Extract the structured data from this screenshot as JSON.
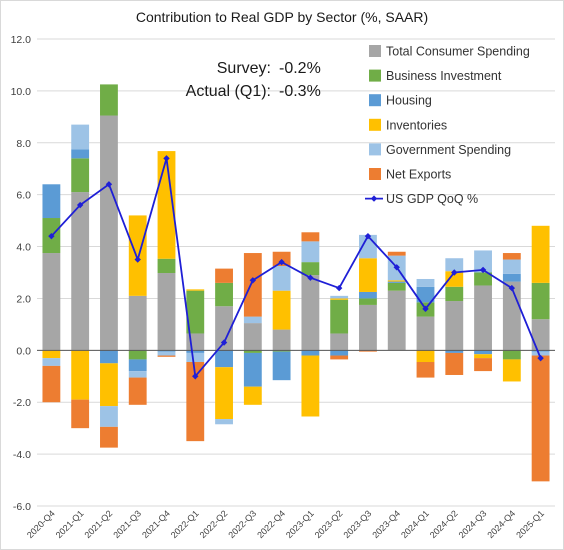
{
  "chart_data": {
    "type": "bar",
    "stacked": true,
    "title": "Contribution to Real GDP by Sector (%, SAAR)",
    "ylim": [
      -6,
      12
    ],
    "yticks": [
      "-6.0",
      "-4.0",
      "-2.0",
      "0.0",
      "2.0",
      "4.0",
      "6.0",
      "8.0",
      "10.0",
      "12.0"
    ],
    "grid": true,
    "legend_position": "top-right",
    "categories": [
      "2020-Q4",
      "2021-Q1",
      "2021-Q2",
      "2021-Q3",
      "2021-Q4",
      "2022-Q1",
      "2022-Q2",
      "2022-Q3",
      "2022-Q4",
      "2023-Q1",
      "2023-Q2",
      "2023-Q3",
      "2023-Q4",
      "2024-Q1",
      "2024-Q2",
      "2024-Q3",
      "2024-Q4",
      "2025-Q1"
    ],
    "series": [
      {
        "name": "Total Consumer Spending",
        "color": "#a6a6a6",
        "values": [
          3.75,
          6.1,
          9.05,
          2.1,
          2.98,
          0.65,
          1.7,
          1.05,
          0.8,
          2.9,
          0.65,
          1.75,
          2.3,
          1.3,
          1.9,
          2.5,
          2.65,
          1.2
        ]
      },
      {
        "name": "Business Investment",
        "color": "#70ad47",
        "values": [
          1.35,
          1.3,
          1.2,
          -0.35,
          0.55,
          1.65,
          0.9,
          -0.1,
          -0.05,
          0.5,
          1.3,
          0.25,
          0.3,
          0.55,
          0.55,
          0.5,
          -0.35,
          1.4
        ]
      },
      {
        "name": "Housing",
        "color": "#5b9bd5",
        "values": [
          1.3,
          0.35,
          -0.5,
          -0.45,
          -0.05,
          -0.1,
          -0.65,
          -1.3,
          -1.1,
          -0.2,
          -0.2,
          0.25,
          0.05,
          0.6,
          -0.1,
          -0.15,
          0.3,
          -0.05
        ]
      },
      {
        "name": "Inventories",
        "color": "#ffc000",
        "values": [
          -0.3,
          -1.9,
          -1.65,
          3.1,
          4.15,
          0.05,
          -2.0,
          -0.7,
          1.5,
          -2.35,
          0.05,
          1.3,
          0.05,
          -0.45,
          0.6,
          -0.15,
          -0.85,
          2.2
        ]
      },
      {
        "name": "Government Spending",
        "color": "#9dc3e6",
        "values": [
          -0.3,
          0.95,
          -0.8,
          -0.25,
          -0.15,
          -0.35,
          -0.2,
          0.25,
          0.95,
          0.8,
          0.1,
          0.9,
          0.95,
          0.3,
          0.5,
          0.85,
          0.55,
          -0.15
        ]
      },
      {
        "name": "Net Exports",
        "color": "#ed7d31",
        "values": [
          -1.4,
          -1.1,
          -0.8,
          -1.05,
          -0.05,
          -3.05,
          0.55,
          2.45,
          0.55,
          0.35,
          -0.15,
          -0.05,
          0.15,
          -0.6,
          -0.85,
          -0.5,
          0.25,
          -4.85
        ]
      }
    ],
    "line": {
      "name": "US GDP QoQ %",
      "color": "#1f1fd6",
      "values": [
        4.4,
        5.6,
        6.4,
        3.5,
        7.4,
        -1.0,
        0.3,
        2.7,
        3.4,
        2.8,
        2.4,
        4.4,
        3.2,
        1.6,
        3.0,
        3.1,
        2.4,
        -0.3
      ]
    },
    "annotations": [
      {
        "label": "Survey:",
        "value": "-0.2%"
      },
      {
        "label": "Actual (Q1):",
        "value": "-0.3%"
      }
    ]
  }
}
